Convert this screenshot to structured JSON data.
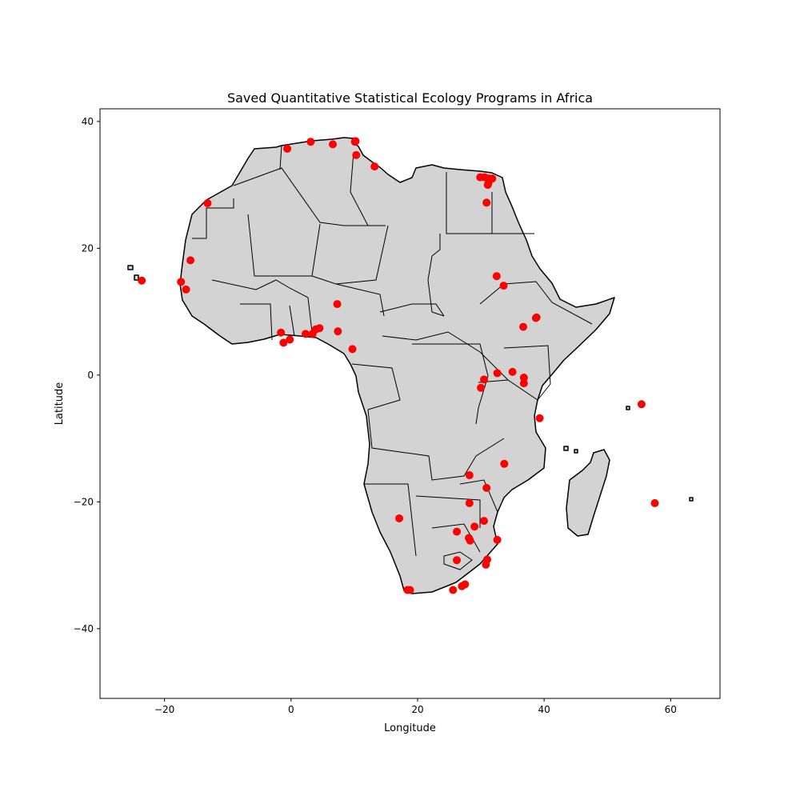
{
  "chart_data": {
    "type": "scatter",
    "title": "Saved Quantitative Statistical Ecology Programs in Africa",
    "xlabel": "Longitude",
    "ylabel": "Latitude",
    "xlim": [
      -30.2,
      67.8
    ],
    "ylim": [
      -51.0,
      42.0
    ],
    "xticks": [
      -20,
      0,
      20,
      40,
      60
    ],
    "yticks": [
      -40,
      -20,
      0,
      20,
      40
    ],
    "xtick_labels": [
      "−20",
      "0",
      "20",
      "40",
      "60"
    ],
    "ytick_labels": [
      "−40",
      "−20",
      "0",
      "20",
      "40"
    ],
    "grid": false,
    "land_color": "#d3d3d3",
    "border_color": "#000000",
    "marker_color": "#ff0000",
    "series": [
      {
        "x": [
          -0.6,
          3.1,
          6.6,
          10.1,
          10.2,
          13.2,
          10.3,
          -13.2,
          -15.9,
          -17.4,
          -16.6,
          -23.6,
          -1.6,
          -1.2,
          -0.2,
          2.3,
          3.4,
          3.9,
          4.5,
          7.3,
          7.4,
          9.7,
          29.9,
          30.6,
          31.2,
          31.8,
          31.1,
          31.2,
          30.9,
          32.5,
          33.6,
          36.7,
          38.7,
          38.8,
          32.6,
          35.0,
          36.8,
          36.8,
          30.5,
          30.0,
          39.3,
          55.4,
          28.2,
          33.7,
          30.9,
          28.2,
          17.1,
          57.5,
          30.5,
          29.0,
          26.2,
          28.1,
          28.3,
          32.6,
          31.0,
          30.8,
          26.2,
          27.5,
          27.0,
          25.6,
          18.4,
          18.8
        ],
        "y": [
          35.7,
          36.8,
          36.4,
          36.8,
          36.9,
          32.9,
          34.7,
          27.1,
          18.1,
          14.7,
          13.5,
          14.9,
          6.7,
          5.1,
          5.6,
          6.5,
          6.5,
          7.2,
          7.4,
          11.2,
          6.9,
          4.1,
          31.2,
          31.2,
          31.0,
          31.0,
          30.0,
          30.3,
          27.2,
          15.6,
          14.1,
          7.6,
          9.0,
          9.1,
          0.3,
          0.5,
          -0.4,
          -1.3,
          -0.7,
          -2.0,
          -6.8,
          -4.6,
          -15.8,
          -14.0,
          -17.8,
          -20.2,
          -22.6,
          -20.2,
          -23.0,
          -23.9,
          -24.7,
          -25.7,
          -26.1,
          -26.0,
          -29.1,
          -29.9,
          -29.2,
          -33.0,
          -33.3,
          -33.9,
          -33.9,
          -33.9
        ]
      }
    ]
  }
}
